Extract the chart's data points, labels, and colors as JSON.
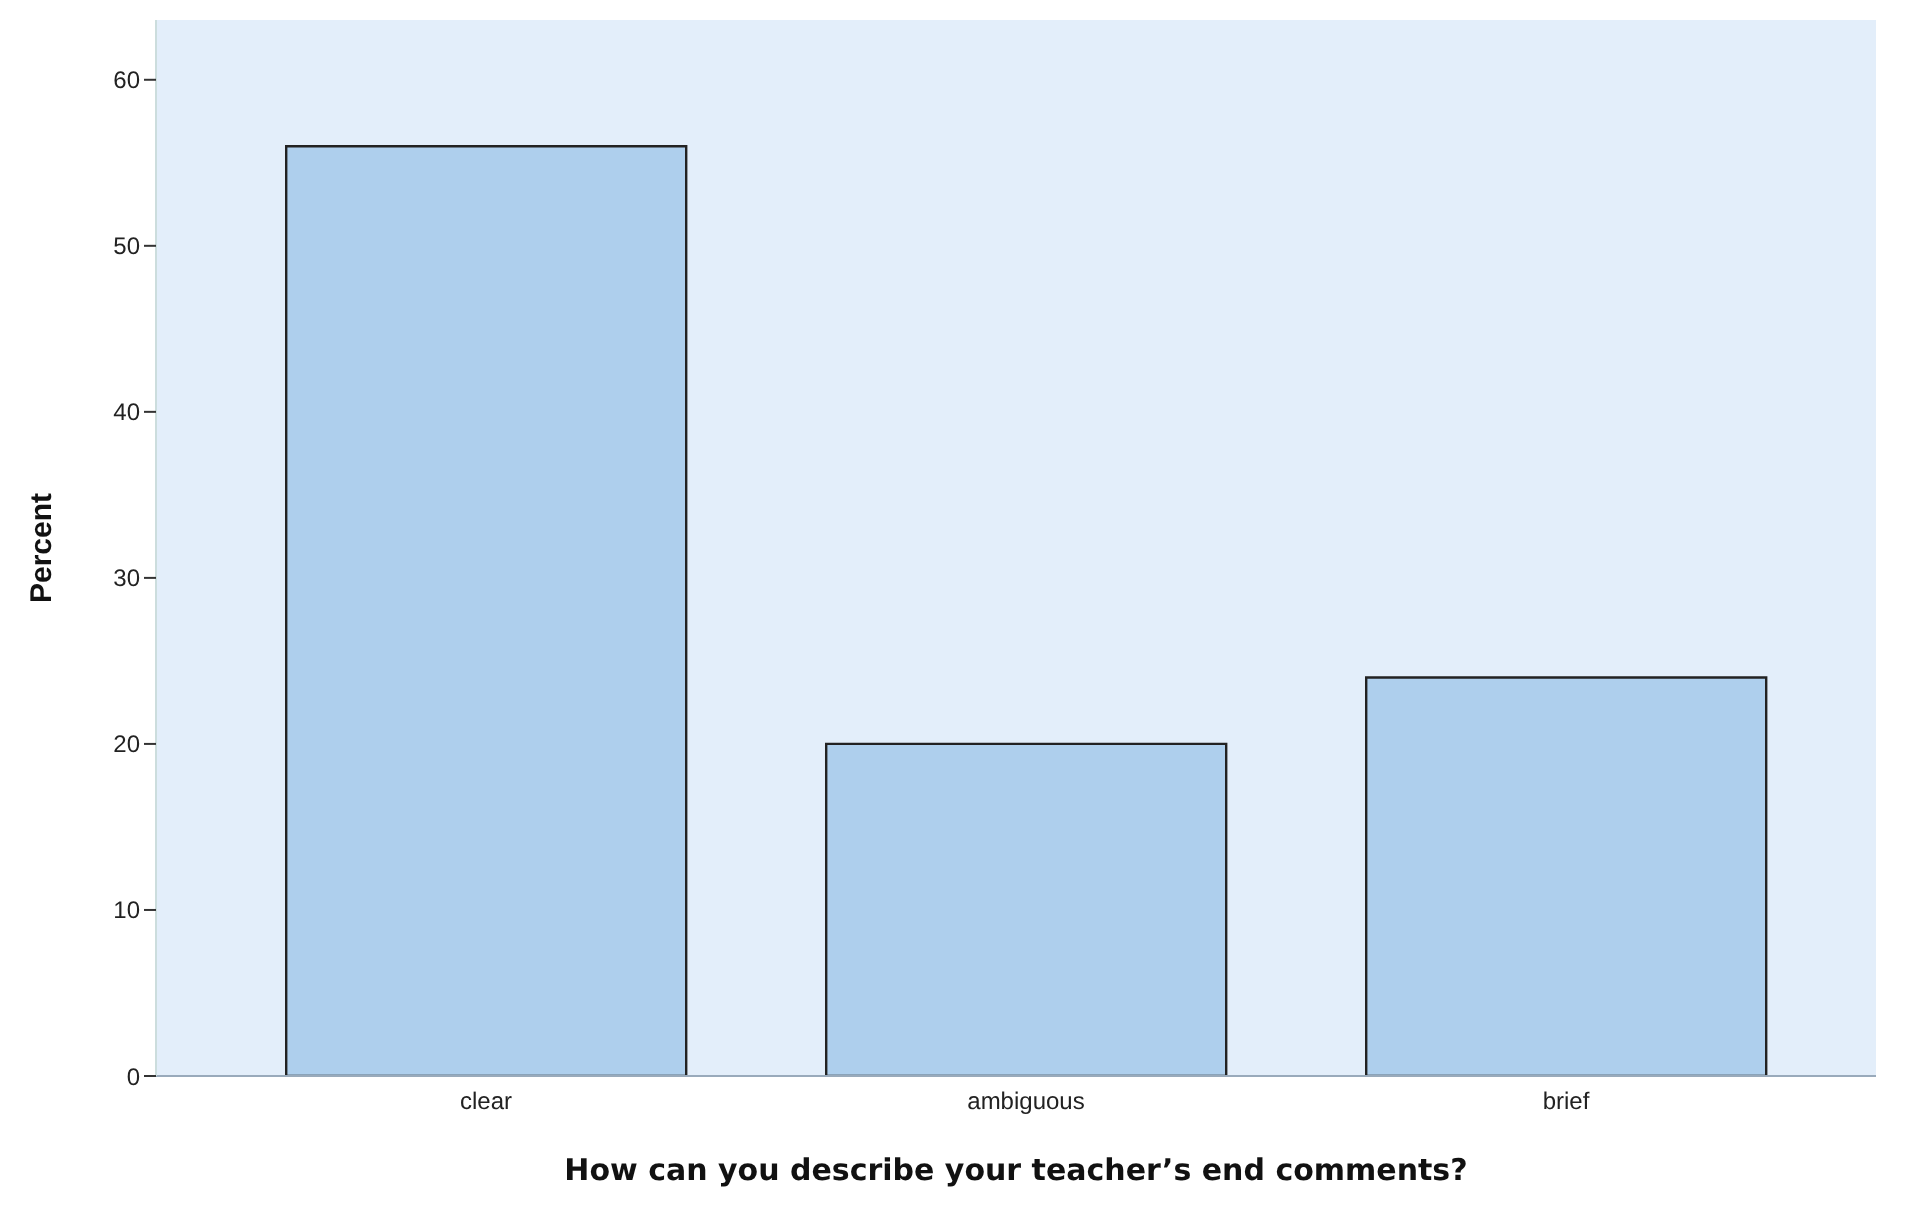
{
  "chart_data": {
    "type": "bar",
    "xlabel": "How can you describe your teacher’s end comments?",
    "ylabel": "Percent",
    "categories": [
      "clear",
      "ambiguous",
      "brief"
    ],
    "values": [
      56,
      20,
      24
    ],
    "color": "#aecfed",
    "ylim": [
      0,
      63.6
    ],
    "yticks": [
      0,
      10,
      20,
      30,
      40,
      50,
      60
    ],
    "grid": false
  }
}
